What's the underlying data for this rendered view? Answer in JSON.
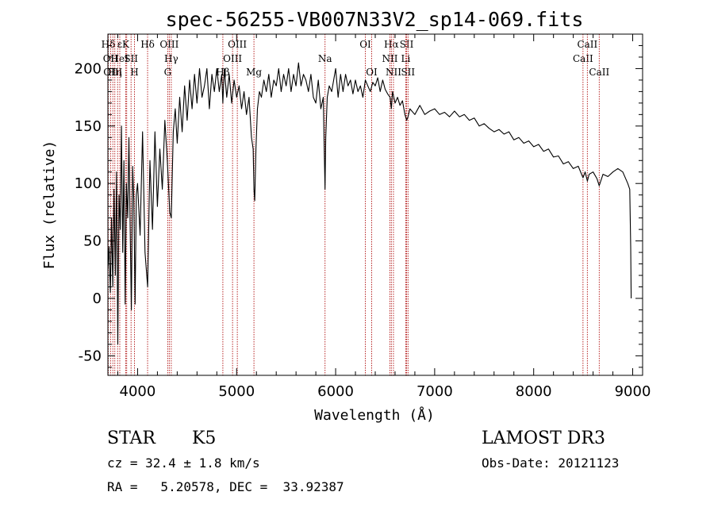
{
  "chart_data": {
    "type": "line",
    "title": "spec-56255-VB007N33V2_sp14-069.fits",
    "xlabel": "Wavelength (Å)",
    "ylabel": "Flux (relative)",
    "xlim": [
      3700,
      9100
    ],
    "ylim": [
      -67,
      230
    ],
    "xticks": [
      4000,
      5000,
      6000,
      7000,
      8000,
      9000
    ],
    "yticks": [
      -50,
      0,
      50,
      100,
      150,
      200
    ],
    "series": [
      {
        "name": "flux",
        "points": [
          [
            3700,
            25
          ],
          [
            3712,
            45
          ],
          [
            3725,
            5
          ],
          [
            3737,
            70
          ],
          [
            3750,
            10
          ],
          [
            3762,
            95
          ],
          [
            3775,
            20
          ],
          [
            3787,
            110
          ],
          [
            3800,
            -40
          ],
          [
            3812,
            90
          ],
          [
            3825,
            60
          ],
          [
            3837,
            150
          ],
          [
            3850,
            40
          ],
          [
            3862,
            120
          ],
          [
            3875,
            -5
          ],
          [
            3887,
            100
          ],
          [
            3900,
            70
          ],
          [
            3912,
            140
          ],
          [
            3925,
            60
          ],
          [
            3937,
            -10
          ],
          [
            3950,
            115
          ],
          [
            3962,
            85
          ],
          [
            3975,
            -5
          ],
          [
            3987,
            90
          ],
          [
            4000,
            100
          ],
          [
            4025,
            55
          ],
          [
            4050,
            145
          ],
          [
            4075,
            40
          ],
          [
            4101,
            10
          ],
          [
            4125,
            120
          ],
          [
            4150,
            60
          ],
          [
            4175,
            145
          ],
          [
            4200,
            80
          ],
          [
            4225,
            130
          ],
          [
            4250,
            95
          ],
          [
            4275,
            155
          ],
          [
            4300,
            120
          ],
          [
            4325,
            75
          ],
          [
            4340,
            70
          ],
          [
            4360,
            145
          ],
          [
            4380,
            165
          ],
          [
            4400,
            135
          ],
          [
            4425,
            175
          ],
          [
            4450,
            145
          ],
          [
            4475,
            185
          ],
          [
            4500,
            155
          ],
          [
            4525,
            190
          ],
          [
            4550,
            165
          ],
          [
            4575,
            195
          ],
          [
            4600,
            170
          ],
          [
            4625,
            200
          ],
          [
            4650,
            175
          ],
          [
            4675,
            185
          ],
          [
            4700,
            200
          ],
          [
            4725,
            165
          ],
          [
            4750,
            195
          ],
          [
            4775,
            180
          ],
          [
            4800,
            200
          ],
          [
            4825,
            180
          ],
          [
            4850,
            195
          ],
          [
            4861,
            170
          ],
          [
            4875,
            200
          ],
          [
            4900,
            175
          ],
          [
            4925,
            195
          ],
          [
            4950,
            170
          ],
          [
            4975,
            190
          ],
          [
            5000,
            175
          ],
          [
            5025,
            185
          ],
          [
            5050,
            165
          ],
          [
            5075,
            180
          ],
          [
            5100,
            160
          ],
          [
            5125,
            175
          ],
          [
            5150,
            140
          ],
          [
            5167,
            130
          ],
          [
            5175,
            95
          ],
          [
            5183,
            85
          ],
          [
            5195,
            130
          ],
          [
            5210,
            165
          ],
          [
            5230,
            180
          ],
          [
            5250,
            175
          ],
          [
            5275,
            190
          ],
          [
            5300,
            180
          ],
          [
            5325,
            195
          ],
          [
            5350,
            175
          ],
          [
            5375,
            190
          ],
          [
            5400,
            185
          ],
          [
            5425,
            200
          ],
          [
            5450,
            180
          ],
          [
            5475,
            195
          ],
          [
            5500,
            185
          ],
          [
            5525,
            200
          ],
          [
            5550,
            180
          ],
          [
            5575,
            195
          ],
          [
            5600,
            185
          ],
          [
            5625,
            205
          ],
          [
            5650,
            185
          ],
          [
            5675,
            195
          ],
          [
            5700,
            190
          ],
          [
            5725,
            180
          ],
          [
            5750,
            195
          ],
          [
            5775,
            175
          ],
          [
            5800,
            170
          ],
          [
            5825,
            190
          ],
          [
            5850,
            165
          ],
          [
            5875,
            175
          ],
          [
            5885,
            130
          ],
          [
            5893,
            95
          ],
          [
            5900,
            140
          ],
          [
            5915,
            175
          ],
          [
            5935,
            185
          ],
          [
            5960,
            180
          ],
          [
            6000,
            200
          ],
          [
            6025,
            175
          ],
          [
            6050,
            195
          ],
          [
            6075,
            180
          ],
          [
            6100,
            195
          ],
          [
            6125,
            185
          ],
          [
            6150,
            190
          ],
          [
            6175,
            178
          ],
          [
            6200,
            190
          ],
          [
            6225,
            180
          ],
          [
            6250,
            185
          ],
          [
            6275,
            175
          ],
          [
            6300,
            190
          ],
          [
            6325,
            185
          ],
          [
            6350,
            180
          ],
          [
            6375,
            188
          ],
          [
            6400,
            185
          ],
          [
            6425,
            192
          ],
          [
            6450,
            180
          ],
          [
            6475,
            190
          ],
          [
            6500,
            182
          ],
          [
            6525,
            178
          ],
          [
            6550,
            175
          ],
          [
            6563,
            165
          ],
          [
            6575,
            180
          ],
          [
            6600,
            170
          ],
          [
            6625,
            175
          ],
          [
            6650,
            168
          ],
          [
            6675,
            172
          ],
          [
            6700,
            160
          ],
          [
            6717,
            155
          ],
          [
            6731,
            158
          ],
          [
            6750,
            165
          ],
          [
            6800,
            160
          ],
          [
            6850,
            168
          ],
          [
            6900,
            160
          ],
          [
            6950,
            163
          ],
          [
            7000,
            165
          ],
          [
            7050,
            160
          ],
          [
            7100,
            162
          ],
          [
            7150,
            158
          ],
          [
            7200,
            163
          ],
          [
            7250,
            158
          ],
          [
            7300,
            160
          ],
          [
            7350,
            155
          ],
          [
            7400,
            157
          ],
          [
            7450,
            150
          ],
          [
            7500,
            152
          ],
          [
            7550,
            148
          ],
          [
            7600,
            145
          ],
          [
            7650,
            147
          ],
          [
            7700,
            143
          ],
          [
            7750,
            145
          ],
          [
            7800,
            138
          ],
          [
            7850,
            140
          ],
          [
            7900,
            135
          ],
          [
            7950,
            137
          ],
          [
            8000,
            132
          ],
          [
            8050,
            134
          ],
          [
            8100,
            128
          ],
          [
            8150,
            130
          ],
          [
            8200,
            123
          ],
          [
            8250,
            124
          ],
          [
            8300,
            117
          ],
          [
            8350,
            119
          ],
          [
            8400,
            113
          ],
          [
            8450,
            115
          ],
          [
            8498,
            105
          ],
          [
            8520,
            110
          ],
          [
            8542,
            102
          ],
          [
            8560,
            108
          ],
          [
            8600,
            110
          ],
          [
            8640,
            104
          ],
          [
            8662,
            98
          ],
          [
            8700,
            108
          ],
          [
            8750,
            106
          ],
          [
            8800,
            110
          ],
          [
            8850,
            113
          ],
          [
            8900,
            110
          ],
          [
            8950,
            100
          ],
          [
            8970,
            95
          ],
          [
            8980,
            45
          ],
          [
            8985,
            0
          ]
        ]
      }
    ],
    "lines": [
      {
        "label": "Hδ",
        "x": 3704,
        "row": 0
      },
      {
        "label": "OII",
        "x": 3727,
        "row": 1
      },
      {
        "label": "OIII",
        "x": 3750,
        "row": 2
      },
      {
        "label": "Hη",
        "x": 3770,
        "row": 2
      },
      {
        "label": "He",
        "x": 3798,
        "row": 1
      },
      {
        "label": "ε",
        "x": 3820,
        "row": 0
      },
      {
        "label": "K",
        "x": 3880,
        "row": 0
      },
      {
        "label": "I",
        "x": 3890,
        "row": 1
      },
      {
        "label": "SII",
        "x": 3934,
        "row": 1
      },
      {
        "label": "H",
        "x": 3968,
        "row": 2
      },
      {
        "label": "Hδ",
        "x": 4101,
        "row": 0
      },
      {
        "label": "OIII",
        "x": 4320,
        "row": 0
      },
      {
        "label": "Hγ",
        "x": 4340,
        "row": 1
      },
      {
        "label": "G",
        "x": 4304,
        "row": 2
      },
      {
        "label": "Hβ",
        "x": 4861,
        "row": 2
      },
      {
        "label": "OIII",
        "x": 4959,
        "row": 1
      },
      {
        "label": "OIII",
        "x": 5007,
        "row": 0
      },
      {
        "label": "Mg",
        "x": 5175,
        "row": 2
      },
      {
        "label": "Na",
        "x": 5893,
        "row": 1
      },
      {
        "label": "OI",
        "x": 6300,
        "row": 0
      },
      {
        "label": "OI",
        "x": 6364,
        "row": 2
      },
      {
        "label": "Hα",
        "x": 6563,
        "row": 0
      },
      {
        "label": "NII",
        "x": 6548,
        "row": 1
      },
      {
        "label": "NII",
        "x": 6584,
        "row": 2
      },
      {
        "label": "SII",
        "x": 6717,
        "row": 0
      },
      {
        "label": "Li",
        "x": 6708,
        "row": 1
      },
      {
        "label": "SII",
        "x": 6731,
        "row": 2
      },
      {
        "label": "CaII",
        "x": 8498,
        "row": 1
      },
      {
        "label": "CaII",
        "x": 8542,
        "row": 0
      },
      {
        "label": "CaII",
        "x": 8662,
        "row": 2
      }
    ]
  },
  "info": {
    "object_class": "STAR",
    "subclass": "K5",
    "cz": "cz = 32.4 ± 1.8 km/s",
    "radec": "RA =   5.20578, DEC =  33.92387",
    "survey": "LAMOST DR3",
    "obs_date": "Obs-Date: 20121123"
  }
}
